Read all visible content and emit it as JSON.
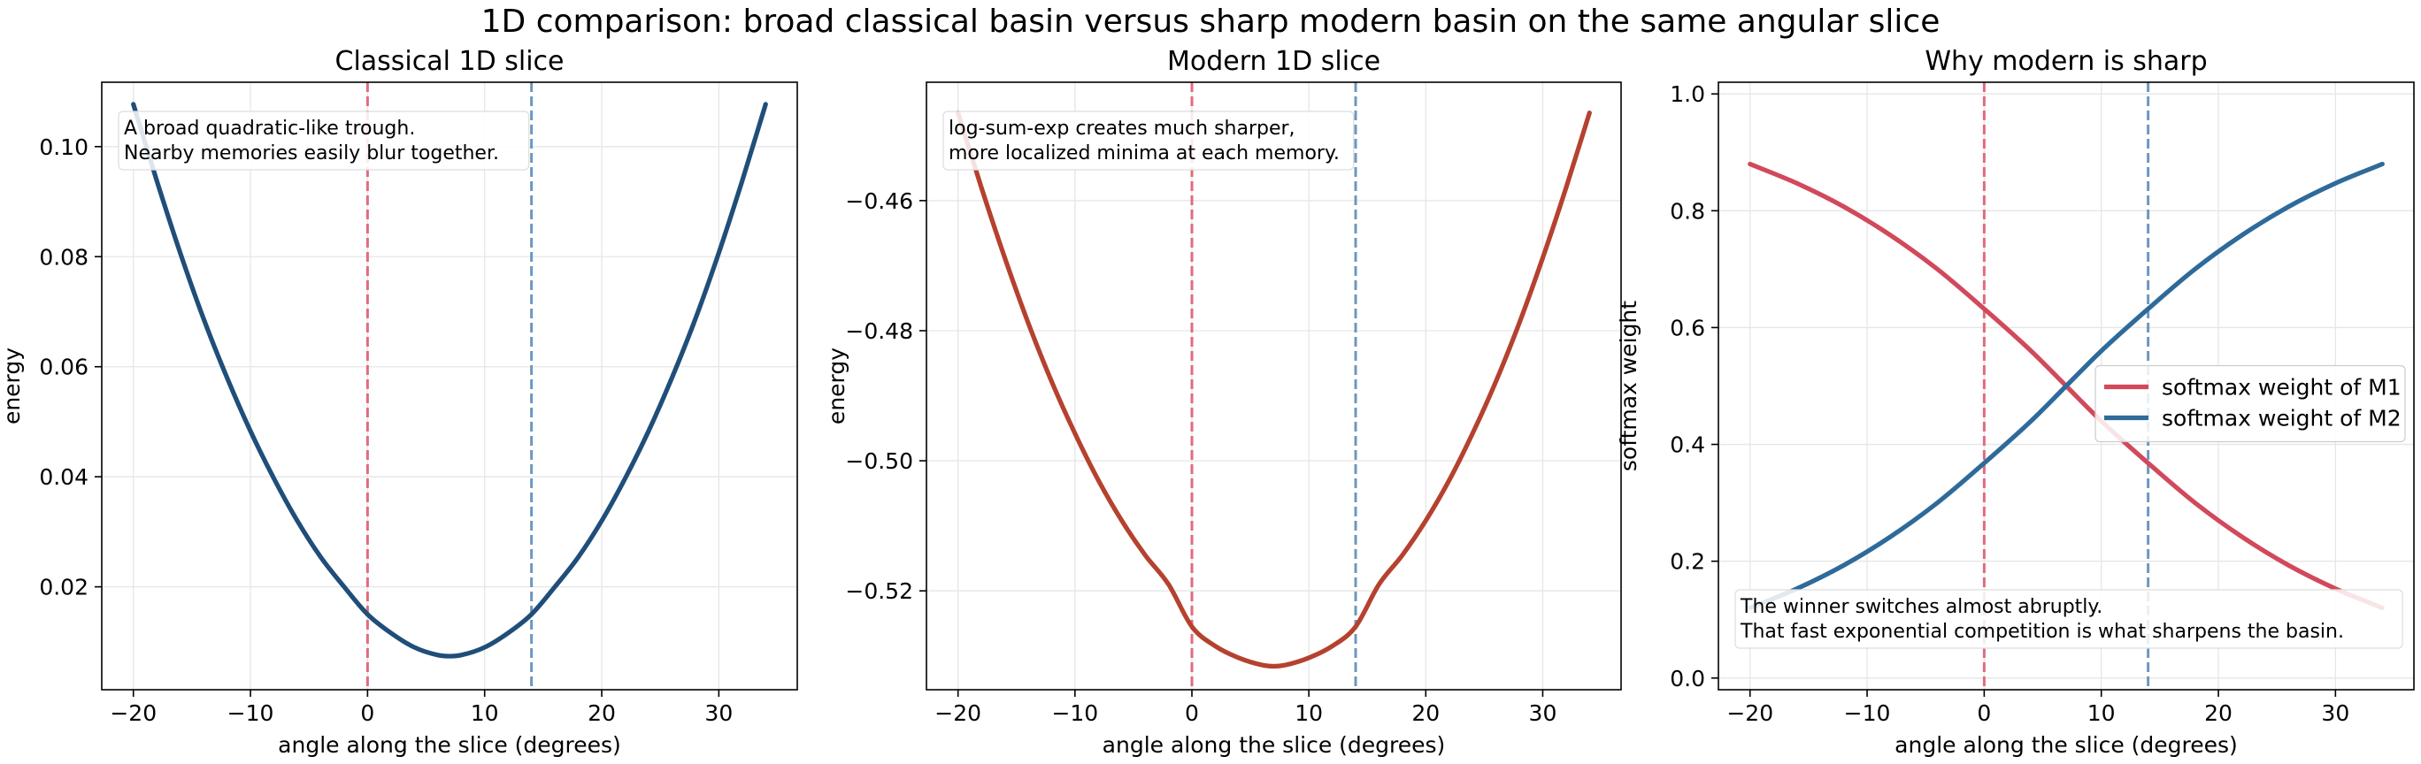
{
  "figure": {
    "suptitle": "1D comparison: broad classical basin versus sharp modern basin on the same angular slice"
  },
  "colors": {
    "classical_curve": "#1f4e79",
    "modern_curve": "#b5412f",
    "m1_marker": "#e06b7e",
    "m2_marker": "#6e97bd",
    "weight_m1": "#d1495b",
    "weight_m2": "#2e6a9a",
    "grid": "#e6e6e6"
  },
  "chart_data": [
    {
      "type": "line",
      "title": "Classical 1D slice",
      "xlabel": "angle along the slice (degrees)",
      "ylabel": "energy",
      "xlim": [
        -22.7,
        36.7
      ],
      "ylim": [
        0.0013,
        0.1117
      ],
      "xticks": [
        -20,
        -10,
        0,
        10,
        20,
        30
      ],
      "xtick_labels": [
        "−20",
        "−10",
        "0",
        "10",
        "20",
        "30"
      ],
      "yticks": [
        0.02,
        0.04,
        0.06,
        0.08,
        0.1
      ],
      "ytick_labels": [
        "0.02",
        "0.04",
        "0.06",
        "0.08",
        "0.10"
      ],
      "grid": true,
      "vlines": [
        {
          "x": 0,
          "color": "#e06b7e"
        },
        {
          "x": 14,
          "color": "#6e97bd"
        }
      ],
      "annotation": [
        "A broad quadratic-like trough.",
        "Nearby memories easily blur together."
      ],
      "annotation_placement": "top-left",
      "series": [
        {
          "color": "#1f4e79",
          "x": [
            -20,
            -18,
            -16,
            -14,
            -12,
            -10,
            -8,
            -6,
            -4,
            -2,
            0,
            2,
            4,
            6,
            7,
            8,
            10,
            12,
            14,
            16,
            18,
            20,
            22,
            24,
            26,
            28,
            30,
            32,
            34
          ],
          "y": [
            0.1077,
            0.0938,
            0.0807,
            0.0687,
            0.058,
            0.0483,
            0.0397,
            0.032,
            0.0254,
            0.02,
            0.015,
            0.0116,
            0.009,
            0.0076,
            0.0074,
            0.0076,
            0.009,
            0.0116,
            0.015,
            0.02,
            0.0254,
            0.032,
            0.0397,
            0.0483,
            0.058,
            0.0687,
            0.0807,
            0.0938,
            0.1077
          ]
        }
      ]
    },
    {
      "type": "line",
      "title": "Modern 1D slice",
      "xlabel": "angle along the slice (degrees)",
      "ylabel": "energy",
      "xlim": [
        -22.7,
        36.7
      ],
      "ylim": [
        -0.5352,
        -0.4418
      ],
      "xticks": [
        -20,
        -10,
        0,
        10,
        20,
        30
      ],
      "xtick_labels": [
        "−20",
        "−10",
        "0",
        "10",
        "20",
        "30"
      ],
      "yticks": [
        -0.52,
        -0.5,
        -0.48,
        -0.46
      ],
      "ytick_labels": [
        "−0.52",
        "−0.50",
        "−0.48",
        "−0.46"
      ],
      "grid": true,
      "vlines": [
        {
          "x": 0,
          "color": "#e06b7e"
        },
        {
          "x": 14,
          "color": "#6e97bd"
        }
      ],
      "annotation": [
        "log-sum-exp creates much sharper,",
        "more localized minima at each memory."
      ],
      "annotation_placement": "top-left",
      "series": [
        {
          "color": "#b5412f",
          "x": [
            -20,
            -18,
            -16,
            -14,
            -12,
            -10,
            -8,
            -6,
            -4,
            -2,
            0,
            2,
            4,
            6,
            7,
            8,
            10,
            12,
            14,
            16,
            18,
            20,
            22,
            24,
            26,
            28,
            30,
            32,
            34
          ],
          "y": [
            -0.4465,
            -0.458,
            -0.4688,
            -0.4788,
            -0.4878,
            -0.4958,
            -0.503,
            -0.5092,
            -0.5145,
            -0.519,
            -0.5255,
            -0.5285,
            -0.5303,
            -0.5314,
            -0.5316,
            -0.5314,
            -0.5303,
            -0.5285,
            -0.5255,
            -0.519,
            -0.5145,
            -0.5092,
            -0.503,
            -0.4958,
            -0.4878,
            -0.4788,
            -0.4688,
            -0.458,
            -0.4465
          ]
        }
      ]
    },
    {
      "type": "line",
      "title": "Why modern is sharp",
      "xlabel": "angle along the slice (degrees)",
      "ylabel": "softmax weight",
      "xlim": [
        -22.7,
        36.7
      ],
      "ylim": [
        -0.02,
        1.02
      ],
      "xticks": [
        -20,
        -10,
        0,
        10,
        20,
        30
      ],
      "xtick_labels": [
        "−20",
        "−10",
        "0",
        "10",
        "20",
        "30"
      ],
      "yticks": [
        0.0,
        0.2,
        0.4,
        0.6,
        0.8,
        1.0
      ],
      "ytick_labels": [
        "0.0",
        "0.2",
        "0.4",
        "0.6",
        "0.8",
        "1.0"
      ],
      "grid": true,
      "vlines": [
        {
          "x": 0,
          "color": "#e06b7e"
        },
        {
          "x": 14,
          "color": "#6e97bd"
        }
      ],
      "annotation": [
        "The winner switches almost abruptly.",
        "That fast exponential competition is what sharpens the basin."
      ],
      "annotation_placement": "bottom-left",
      "legend_placement": "center-right",
      "series": [
        {
          "name": "softmax weight of M1",
          "color": "#d1495b",
          "x": [
            -20,
            -16,
            -12,
            -8,
            -4,
            0,
            4,
            7,
            10,
            14,
            18,
            22,
            26,
            30,
            34
          ],
          "y": [
            0.88,
            0.847,
            0.807,
            0.758,
            0.7,
            0.632,
            0.56,
            0.5,
            0.44,
            0.368,
            0.3,
            0.242,
            0.193,
            0.153,
            0.12
          ]
        },
        {
          "name": "softmax weight of M2",
          "color": "#2e6a9a",
          "x": [
            -20,
            -16,
            -12,
            -8,
            -4,
            0,
            4,
            7,
            10,
            14,
            18,
            22,
            26,
            30,
            34
          ],
          "y": [
            0.12,
            0.153,
            0.193,
            0.242,
            0.3,
            0.368,
            0.44,
            0.5,
            0.56,
            0.632,
            0.7,
            0.758,
            0.807,
            0.847,
            0.88
          ]
        }
      ]
    }
  ]
}
